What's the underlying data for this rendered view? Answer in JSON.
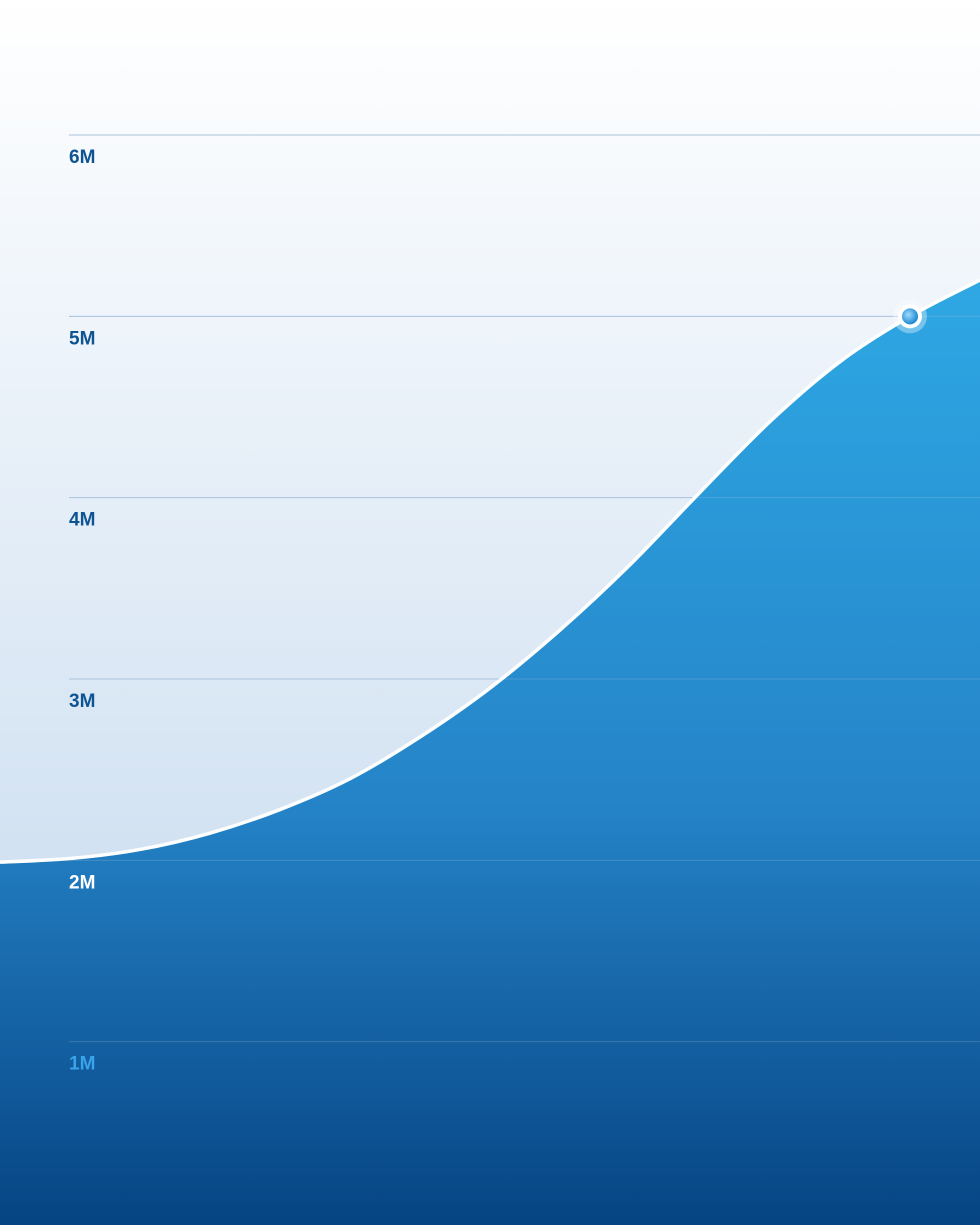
{
  "chart_data": {
    "type": "area",
    "categories": [
      null,
      null,
      null,
      null,
      null,
      null,
      null,
      null,
      null,
      null,
      null,
      null,
      null,
      null,
      null
    ],
    "series": [
      {
        "color": "#2ba3e2",
        "values": [
          1990000,
          2010000,
          2060000,
          2150000,
          2280000,
          2450000,
          2680000,
          2950000,
          3270000,
          3630000,
          4030000,
          4420000,
          4750000,
          5000000,
          5200000
        ]
      }
    ],
    "marker_index": 13,
    "ylim": [
      0,
      6000000
    ],
    "yticks": [
      {
        "value": 1000000,
        "label": "1M"
      },
      {
        "value": 2000000,
        "label": "2M"
      },
      {
        "value": 3000000,
        "label": "3M"
      },
      {
        "value": 4000000,
        "label": "4M"
      },
      {
        "value": 5000000,
        "label": "5M"
      },
      {
        "value": 6000000,
        "label": "6M"
      }
    ],
    "grid": true
  }
}
